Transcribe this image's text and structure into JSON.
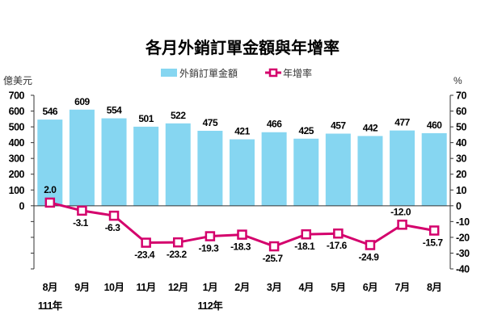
{
  "chart_data": {
    "type": "bar+line",
    "title": "各月外銷訂單金額與年增率",
    "left_axis_label": "億美元",
    "right_axis_label": "%",
    "categories": [
      "8月",
      "9月",
      "10月",
      "11月",
      "12月",
      "1月",
      "2月",
      "3月",
      "4月",
      "5月",
      "6月",
      "7月",
      "8月"
    ],
    "year_labels": [
      {
        "index": 0,
        "text": "111年"
      },
      {
        "index": 5,
        "text": "112年"
      }
    ],
    "series": [
      {
        "name": "外銷訂單金額",
        "type": "bar",
        "axis": "left",
        "color": "#86d6f1",
        "values": [
          546,
          609,
          554,
          501,
          522,
          475,
          421,
          466,
          425,
          457,
          442,
          477,
          460
        ]
      },
      {
        "name": "年增率",
        "type": "line",
        "axis": "right",
        "color": "#d4006c",
        "values": [
          2.0,
          -3.1,
          -6.3,
          -23.4,
          -23.2,
          -19.3,
          -18.3,
          -25.7,
          -18.1,
          -17.6,
          -24.9,
          -12.0,
          -15.7
        ]
      }
    ],
    "left_ylim": [
      -400,
      700
    ],
    "left_ticks": [
      "700",
      "600",
      "500",
      "400",
      "300",
      "200",
      "100",
      "0"
    ],
    "left_tick_values": [
      700,
      600,
      500,
      400,
      300,
      200,
      100,
      0,
      -100,
      -200,
      -300,
      -400
    ],
    "right_ylim": [
      -40,
      70
    ],
    "right_ticks": [
      70,
      60,
      50,
      40,
      30,
      20,
      10,
      0,
      -10,
      -20,
      -30,
      -40
    ],
    "legend_position": "top-center"
  }
}
